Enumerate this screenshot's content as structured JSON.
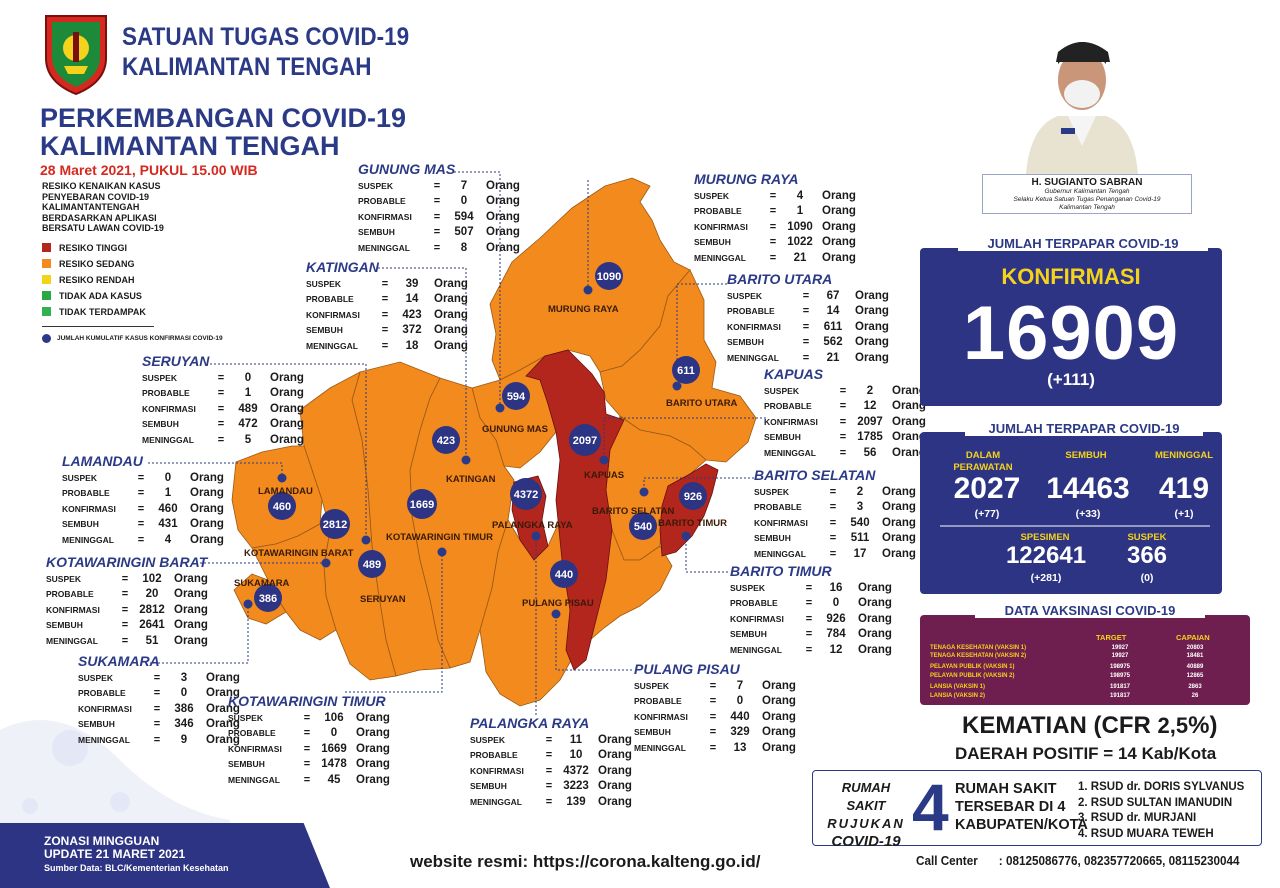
{
  "header": {
    "line1": "SATUAN TUGAS COVID-19",
    "line2": "KALIMANTAN TENGAH"
  },
  "main_title": {
    "line1": "PERKEMBANGAN COVID-19",
    "line2": "KALIMANTAN TENGAH"
  },
  "date_line": "28 Maret 2021, PUKUL 15.00 WIB",
  "legend": {
    "title": [
      "RESIKO KENAIKAN KASUS",
      "PENYEBARAN COVID-19",
      "KALIMANTANTENGAH",
      "BERDASARKAN APLIKASI",
      "BERSATU LAWAN COVID-19"
    ],
    "items": [
      {
        "label": "RESIKO TINGGI",
        "color": "#b3261e"
      },
      {
        "label": "RESIKO SEDANG",
        "color": "#f28a1e"
      },
      {
        "label": "RESIKO RENDAH",
        "color": "#f2d516"
      },
      {
        "label": "TIDAK ADA KASUS",
        "color": "#2aa845"
      },
      {
        "label": "TIDAK TERDAMPAK",
        "color": "#33b04f"
      }
    ],
    "dot_label": "JUMLAH KUMULATIF KASUS KONFIRMASI COVID-19"
  },
  "labels": {
    "suspek": "SUSPEK",
    "probable": "PROBABLE",
    "konfirmasi": "KONFIRMASI",
    "sembuh": "SEMBUH",
    "meninggal": "MENINGGAL",
    "eq": "=",
    "unit": "Orang"
  },
  "regions": [
    {
      "name": "GUNUNG MAS",
      "suspek": "7",
      "probable": "0",
      "konfirmasi": "594",
      "sembuh": "507",
      "meninggal": "8"
    },
    {
      "name": "MURUNG RAYA",
      "suspek": "4",
      "probable": "1",
      "konfirmasi": "1090",
      "sembuh": "1022",
      "meninggal": "21"
    },
    {
      "name": "KATINGAN",
      "suspek": "39",
      "probable": "14",
      "konfirmasi": "423",
      "sembuh": "372",
      "meninggal": "18"
    },
    {
      "name": "BARITO UTARA",
      "suspek": "67",
      "probable": "14",
      "konfirmasi": "611",
      "sembuh": "562",
      "meninggal": "21"
    },
    {
      "name": "SERUYAN",
      "suspek": "0",
      "probable": "1",
      "konfirmasi": "489",
      "sembuh": "472",
      "meninggal": "5"
    },
    {
      "name": "KAPUAS",
      "suspek": "2",
      "probable": "12",
      "konfirmasi": "2097",
      "sembuh": "1785",
      "meninggal": "56"
    },
    {
      "name": "LAMANDAU",
      "suspek": "0",
      "probable": "1",
      "konfirmasi": "460",
      "sembuh": "431",
      "meninggal": "4"
    },
    {
      "name": "BARITO SELATAN",
      "suspek": "2",
      "probable": "3",
      "konfirmasi": "540",
      "sembuh": "511",
      "meninggal": "17"
    },
    {
      "name": "KOTAWARINGIN BARAT",
      "suspek": "102",
      "probable": "20",
      "konfirmasi": "2812",
      "sembuh": "2641",
      "meninggal": "51"
    },
    {
      "name": "BARITO TIMUR",
      "suspek": "16",
      "probable": "0",
      "konfirmasi": "926",
      "sembuh": "784",
      "meninggal": "12"
    },
    {
      "name": "SUKAMARA",
      "suspek": "3",
      "probable": "0",
      "konfirmasi": "386",
      "sembuh": "346",
      "meninggal": "9"
    },
    {
      "name": "PULANG PISAU",
      "suspek": "7",
      "probable": "0",
      "konfirmasi": "440",
      "sembuh": "329",
      "meninggal": "13"
    },
    {
      "name": "KOTAWARINGIN TIMUR",
      "suspek": "106",
      "probable": "0",
      "konfirmasi": "1669",
      "sembuh": "1478",
      "meninggal": "45"
    },
    {
      "name": "PALANGKA RAYA",
      "suspek": "11",
      "probable": "10",
      "konfirmasi": "4372",
      "sembuh": "3223",
      "meninggal": "139"
    }
  ],
  "map_labels": {
    "murung_raya": "MURUNG RAYA",
    "barito_utara": "BARITO UTARA",
    "gunung_mas": "GUNUNG MAS",
    "kapuas": "KAPUAS",
    "katingan": "KATINGAN",
    "lamandau": "LAMANDAU",
    "kotawaringin_barat": "KOTAWARINGIN BARAT",
    "kotawaringin_timur": "KOTAWARINGIN TIMUR",
    "palangka_raya": "PALANGKA RAYA",
    "barito_selatan": "BARITO SELATAN",
    "barito_timur": "BARITO TIMUR",
    "sukamara": "SUKAMARA",
    "seruyan": "SERUYAN",
    "pulang_pisau": "PULANG PISAU"
  },
  "map_dots": {
    "murung_raya": "1090",
    "barito_utara": "611",
    "gunung_mas": "594",
    "kapuas": "2097",
    "katingan": "423",
    "lamandau": "460",
    "kotawaringin_barat": "2812",
    "kotawaringin_timur": "1669",
    "palangka_raya": "4372",
    "barito_selatan": "540",
    "barito_timur": "926",
    "sukamara": "386",
    "seruyan": "489",
    "pulang_pisau": "440"
  },
  "governor": {
    "name": "H. SUGIANTO SABRAN",
    "title1": "Gubernur Kalimantan Tengah",
    "title2": "Selaku Ketua Satuan Tugas Penanganan Covid-19",
    "title3": "Kalimantan Tengah"
  },
  "konfirmasi_panel": {
    "tab": "JUMLAH TERPAPAR COVID-19",
    "label": "KONFIRMASI",
    "total": "16909",
    "delta": "(+111)"
  },
  "status_panel": {
    "tab": "JUMLAH TERPAPAR COVID-19",
    "perawatan_label1": "DALAM",
    "perawatan_label2": "PERAWATAN",
    "perawatan": "2027",
    "perawatan_delta": "(+77)",
    "sembuh_label": "SEMBUH",
    "sembuh": "14463",
    "sembuh_delta": "(+33)",
    "meninggal_label": "MENINGGAL",
    "meninggal": "419",
    "meninggal_delta": "(+1)",
    "spesimen_label": "SPESIMEN",
    "spesimen": "122641",
    "spesimen_delta": "(+281)",
    "suspek_label": "SUSPEK",
    "suspek": "366",
    "suspek_delta": "(0)"
  },
  "vaksin": {
    "tab": "DATA VAKSINASI COVID-19",
    "target_label": "TARGET",
    "capaian_label": "CAPAIAN",
    "rows": [
      {
        "name": "TENAGA KESEHATAN (VAKSIN 1)",
        "target": "19927",
        "capaian": "20803"
      },
      {
        "name": "TENAGA KESEHATAN (VAKSIN 2)",
        "target": "19927",
        "capaian": "18481"
      },
      {
        "name": "PELAYAN PUBLIK (VAKSIN 1)",
        "target": "198975",
        "capaian": "40889"
      },
      {
        "name": "PELAYAN PUBLIK (VAKSIN 2)",
        "target": "198975",
        "capaian": "12865"
      },
      {
        "name": "LANSIA (VAKSIN 1)",
        "target": "191817",
        "capaian": "2863"
      },
      {
        "name": "LANSIA (VAKSIN 2)",
        "target": "191817",
        "capaian": "26"
      }
    ]
  },
  "kematian": {
    "prefix": "KEMATIAN (CFR",
    "value": "2,5",
    "suffix": "%)"
  },
  "daerah_positif": {
    "prefix": "DAERAH POSITIF =",
    "value": "14",
    "suffix": "Kab/Kota"
  },
  "rumah_sakit": {
    "label1": "RUMAH SAKIT",
    "label2": "RUJUKAN",
    "label3": "COVID-19",
    "count": "4",
    "desc1": "RUMAH SAKIT",
    "desc2": "TERSEBAR DI 4",
    "desc3": "KABUPATEN/KOTA",
    "list": [
      "1. RSUD dr. DORIS SYLVANUS",
      "2. RSUD SULTAN IMANUDIN",
      "3. RSUD dr. MURJANI",
      "4. RSUD MUARA TEWEH"
    ]
  },
  "zonasi": {
    "line1": "ZONASI MINGGUAN",
    "line2": "UPDATE 21 MARET 2021",
    "source": "Sumber Data: BLC/Kementerian Kesehatan"
  },
  "website": "website resmi: https://corona.kalteng.go.id/",
  "call_center": {
    "label": "Call Center",
    "numbers": ": 08125086776, 082357720665, 08115230044"
  }
}
